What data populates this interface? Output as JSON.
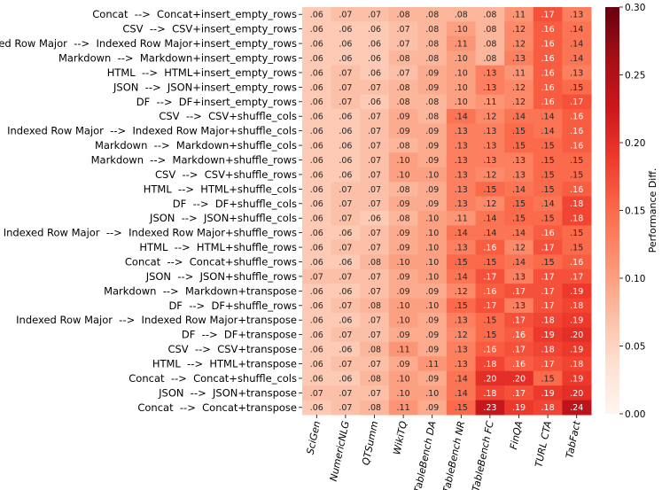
{
  "chart_data": {
    "type": "heatmap",
    "title": "",
    "xlabel": "",
    "ylabel": "",
    "colorbar_label": "Performance Diff.",
    "vmin": 0.0,
    "vmax": 0.3,
    "colorbar_ticks": [
      "0.00",
      "0.05",
      "0.10",
      "0.15",
      "0.20",
      "0.25",
      "0.30"
    ],
    "colorbar_tick_values": [
      0.0,
      0.05,
      0.1,
      0.15,
      0.2,
      0.25,
      0.3
    ],
    "colormap": [
      "#fff5f0",
      "#fee0d2",
      "#fcbba1",
      "#fc9272",
      "#fb6a4a",
      "#ef3b2c",
      "#cb181d",
      "#a50f15",
      "#67000d"
    ],
    "columns": [
      "SciGen",
      "NumericNLG",
      "QTSumm",
      "WikiTQ",
      "TableBench DA",
      "TableBench NR",
      "TableBench FC",
      "FinQA",
      "TURL CTA",
      "TabFact"
    ],
    "rows": [
      "Concat  -->  Concat+insert_empty_rows",
      "CSV  -->  CSV+insert_empty_rows",
      "Indexed Row Major  -->  Indexed Row Major+insert_empty_rows",
      "Markdown  -->  Markdown+insert_empty_rows",
      "HTML  -->  HTML+insert_empty_rows",
      "JSON  -->  JSON+insert_empty_rows",
      "DF  -->  DF+insert_empty_rows",
      "CSV  -->  CSV+shuffle_cols",
      "Indexed Row Major  -->  Indexed Row Major+shuffle_cols",
      "Markdown  -->  Markdown+shuffle_cols",
      "Markdown  -->  Markdown+shuffle_rows",
      "CSV  -->  CSV+shuffle_rows",
      "HTML  -->  HTML+shuffle_cols",
      "DF  -->  DF+shuffle_cols",
      "JSON  -->  JSON+shuffle_cols",
      "Indexed Row Major  -->  Indexed Row Major+shuffle_rows",
      "HTML  -->  HTML+shuffle_rows",
      "Concat  -->  Concat+shuffle_rows",
      "JSON  -->  JSON+shuffle_rows",
      "Markdown  -->  Markdown+transpose",
      "DF  -->  DF+shuffle_rows",
      "Indexed Row Major  -->  Indexed Row Major+transpose",
      "DF  -->  DF+transpose",
      "CSV  -->  CSV+transpose",
      "HTML  -->  HTML+transpose",
      "Concat  -->  Concat+shuffle_cols",
      "JSON  -->  JSON+transpose",
      "Concat  -->  Concat+transpose"
    ],
    "values": [
      [
        0.06,
        0.07,
        0.07,
        0.08,
        0.08,
        0.08,
        0.08,
        0.11,
        0.17,
        0.13
      ],
      [
        0.06,
        0.06,
        0.06,
        0.07,
        0.08,
        0.1,
        0.08,
        0.12,
        0.16,
        0.14
      ],
      [
        0.06,
        0.06,
        0.06,
        0.07,
        0.08,
        0.11,
        0.08,
        0.12,
        0.16,
        0.14
      ],
      [
        0.06,
        0.06,
        0.06,
        0.08,
        0.08,
        0.1,
        0.08,
        0.13,
        0.16,
        0.14
      ],
      [
        0.06,
        0.07,
        0.06,
        0.07,
        0.09,
        0.1,
        0.13,
        0.11,
        0.16,
        0.13
      ],
      [
        0.06,
        0.07,
        0.07,
        0.08,
        0.09,
        0.1,
        0.13,
        0.12,
        0.16,
        0.15
      ],
      [
        0.06,
        0.07,
        0.06,
        0.08,
        0.08,
        0.1,
        0.11,
        0.12,
        0.16,
        0.17
      ],
      [
        0.06,
        0.06,
        0.07,
        0.09,
        0.08,
        0.14,
        0.12,
        0.14,
        0.14,
        0.16
      ],
      [
        0.06,
        0.06,
        0.07,
        0.09,
        0.09,
        0.13,
        0.13,
        0.15,
        0.14,
        0.16
      ],
      [
        0.06,
        0.06,
        0.07,
        0.08,
        0.09,
        0.13,
        0.13,
        0.15,
        0.15,
        0.16
      ],
      [
        0.06,
        0.06,
        0.07,
        0.1,
        0.09,
        0.13,
        0.13,
        0.13,
        0.15,
        0.15
      ],
      [
        0.06,
        0.06,
        0.07,
        0.1,
        0.1,
        0.13,
        0.12,
        0.13,
        0.15,
        0.15
      ],
      [
        0.06,
        0.07,
        0.07,
        0.08,
        0.09,
        0.13,
        0.15,
        0.14,
        0.15,
        0.16
      ],
      [
        0.06,
        0.07,
        0.07,
        0.09,
        0.09,
        0.13,
        0.12,
        0.15,
        0.14,
        0.18
      ],
      [
        0.06,
        0.07,
        0.06,
        0.08,
        0.1,
        0.11,
        0.14,
        0.15,
        0.15,
        0.18
      ],
      [
        0.06,
        0.06,
        0.07,
        0.09,
        0.1,
        0.14,
        0.14,
        0.14,
        0.16,
        0.15
      ],
      [
        0.06,
        0.07,
        0.07,
        0.09,
        0.1,
        0.13,
        0.16,
        0.12,
        0.17,
        0.15
      ],
      [
        0.06,
        0.06,
        0.08,
        0.1,
        0.1,
        0.15,
        0.15,
        0.14,
        0.15,
        0.16
      ],
      [
        0.07,
        0.07,
        0.07,
        0.09,
        0.1,
        0.14,
        0.17,
        0.13,
        0.17,
        0.17
      ],
      [
        0.06,
        0.06,
        0.07,
        0.09,
        0.09,
        0.12,
        0.16,
        0.17,
        0.17,
        0.19
      ],
      [
        0.06,
        0.07,
        0.08,
        0.1,
        0.1,
        0.15,
        0.17,
        0.13,
        0.17,
        0.18
      ],
      [
        0.06,
        0.06,
        0.07,
        0.1,
        0.09,
        0.13,
        0.15,
        0.17,
        0.18,
        0.19
      ],
      [
        0.06,
        0.07,
        0.07,
        0.09,
        0.09,
        0.12,
        0.15,
        0.16,
        0.19,
        0.2
      ],
      [
        0.06,
        0.06,
        0.08,
        0.11,
        0.09,
        0.13,
        0.16,
        0.17,
        0.18,
        0.19
      ],
      [
        0.06,
        0.07,
        0.07,
        0.09,
        0.11,
        0.13,
        0.18,
        0.16,
        0.17,
        0.18
      ],
      [
        0.06,
        0.06,
        0.08,
        0.1,
        0.09,
        0.14,
        0.2,
        0.2,
        0.15,
        0.19
      ],
      [
        0.07,
        0.07,
        0.07,
        0.1,
        0.1,
        0.14,
        0.18,
        0.17,
        0.19,
        0.2
      ],
      [
        0.06,
        0.07,
        0.08,
        0.11,
        0.09,
        0.15,
        0.23,
        0.19,
        0.18,
        0.24
      ]
    ],
    "cell_labels": [
      [
        ".06",
        ".07",
        ".07",
        ".08",
        ".08",
        ".08",
        ".08",
        ".11",
        ".17",
        ".13"
      ],
      [
        ".06",
        ".06",
        ".06",
        ".07",
        ".08",
        ".10",
        ".08",
        ".12",
        ".16",
        ".14"
      ],
      [
        ".06",
        ".06",
        ".06",
        ".07",
        ".08",
        ".11",
        ".08",
        ".12",
        ".16",
        ".14"
      ],
      [
        ".06",
        ".06",
        ".06",
        ".08",
        ".08",
        ".10",
        ".08",
        ".13",
        ".16",
        ".14"
      ],
      [
        ".06",
        ".07",
        ".06",
        ".07",
        ".09",
        ".10",
        ".13",
        ".11",
        ".16",
        ".13"
      ],
      [
        ".06",
        ".07",
        ".07",
        ".08",
        ".09",
        ".10",
        ".13",
        ".12",
        ".16",
        ".15"
      ],
      [
        ".06",
        ".07",
        ".06",
        ".08",
        ".08",
        ".10",
        ".11",
        ".12",
        ".16",
        ".17"
      ],
      [
        ".06",
        ".06",
        ".07",
        ".09",
        ".08",
        ".14",
        ".12",
        ".14",
        ".14",
        ".16"
      ],
      [
        ".06",
        ".06",
        ".07",
        ".09",
        ".09",
        ".13",
        ".13",
        ".15",
        ".14",
        ".16"
      ],
      [
        ".06",
        ".06",
        ".07",
        ".08",
        ".09",
        ".13",
        ".13",
        ".15",
        ".15",
        ".16"
      ],
      [
        ".06",
        ".06",
        ".07",
        ".10",
        ".09",
        ".13",
        ".13",
        ".13",
        ".15",
        ".15"
      ],
      [
        ".06",
        ".06",
        ".07",
        ".10",
        ".10",
        ".13",
        ".12",
        ".13",
        ".15",
        ".15"
      ],
      [
        ".06",
        ".07",
        ".07",
        ".08",
        ".09",
        ".13",
        ".15",
        ".14",
        ".15",
        ".16"
      ],
      [
        ".06",
        ".07",
        ".07",
        ".09",
        ".09",
        ".13",
        ".12",
        ".15",
        ".14",
        ".18"
      ],
      [
        ".06",
        ".07",
        ".06",
        ".08",
        ".10",
        ".11",
        ".14",
        ".15",
        ".15",
        ".18"
      ],
      [
        ".06",
        ".06",
        ".07",
        ".09",
        ".10",
        ".14",
        ".14",
        ".14",
        ".16",
        ".15"
      ],
      [
        ".06",
        ".07",
        ".07",
        ".09",
        ".10",
        ".13",
        ".16",
        ".12",
        ".17",
        ".15"
      ],
      [
        ".06",
        ".06",
        ".08",
        ".10",
        ".10",
        ".15",
        ".15",
        ".14",
        ".15",
        ".16"
      ],
      [
        ".07",
        ".07",
        ".07",
        ".09",
        ".10",
        ".14",
        ".17",
        ".13",
        ".17",
        ".17"
      ],
      [
        ".06",
        ".06",
        ".07",
        ".09",
        ".09",
        ".12",
        ".16",
        ".17",
        ".17",
        ".19"
      ],
      [
        ".06",
        ".07",
        ".08",
        ".10",
        ".10",
        ".15",
        ".17",
        ".13",
        ".17",
        ".18"
      ],
      [
        ".06",
        ".06",
        ".07",
        ".10",
        ".09",
        ".13",
        ".15",
        ".17",
        ".18",
        ".19"
      ],
      [
        ".06",
        ".07",
        ".07",
        ".09",
        ".09",
        ".12",
        ".15",
        ".16",
        ".19",
        ".20"
      ],
      [
        ".06",
        ".06",
        ".08",
        ".11",
        ".09",
        ".13",
        ".16",
        ".17",
        ".18",
        ".19"
      ],
      [
        ".06",
        ".07",
        ".07",
        ".09",
        ".11",
        ".13",
        ".18",
        ".16",
        ".17",
        ".18"
      ],
      [
        ".06",
        ".06",
        ".08",
        ".10",
        ".09",
        ".14",
        ".20",
        ".20",
        ".15",
        ".19"
      ],
      [
        ".07",
        ".07",
        ".07",
        ".10",
        ".10",
        ".14",
        ".18",
        ".17",
        ".19",
        ".20"
      ],
      [
        ".06",
        ".07",
        ".08",
        ".11",
        ".09",
        ".15",
        ".23",
        ".19",
        ".18",
        ".24"
      ]
    ]
  }
}
